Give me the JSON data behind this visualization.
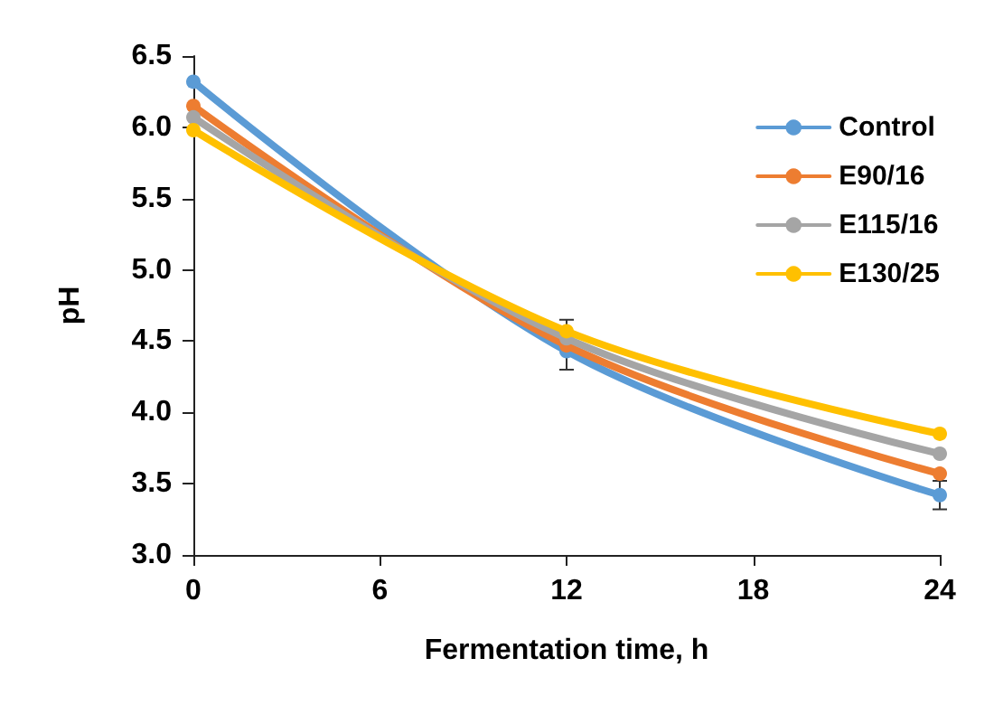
{
  "chart_data": {
    "type": "line",
    "xlabel": "Fermentation time, h",
    "ylabel": "pH",
    "x": [
      0,
      12,
      24
    ],
    "xlim": [
      0,
      24
    ],
    "xticks": [
      0,
      6,
      12,
      18,
      24
    ],
    "ylim": [
      3.0,
      6.5
    ],
    "yticks": [
      {
        "value": 3.0,
        "label": "3.0"
      },
      {
        "value": 3.5,
        "label": "3.5"
      },
      {
        "value": 4.0,
        "label": "4.0"
      },
      {
        "value": 4.5,
        "label": "4.5"
      },
      {
        "value": 5.0,
        "label": "5.0"
      },
      {
        "value": 5.5,
        "label": "5.5"
      },
      {
        "value": 6.0,
        "label": "6.0"
      },
      {
        "value": 6.5,
        "label": "6.5"
      }
    ],
    "series": [
      {
        "name": "Control",
        "color": "#5b9bd5",
        "values": [
          6.32,
          4.43,
          3.42
        ],
        "errors": [
          null,
          0.13,
          0.1
        ]
      },
      {
        "name": "E90/16",
        "color": "#ed7d31",
        "values": [
          6.15,
          4.47,
          3.57
        ]
      },
      {
        "name": "E115/16",
        "color": "#a5a5a5",
        "values": [
          6.07,
          4.52,
          3.71
        ]
      },
      {
        "name": "E130/25",
        "color": "#ffc000",
        "values": [
          5.98,
          4.57,
          3.85
        ],
        "errors": [
          null,
          0.08,
          null
        ]
      }
    ],
    "grid": false,
    "legend": "top right",
    "marker": "circle",
    "line_style": "solid"
  }
}
